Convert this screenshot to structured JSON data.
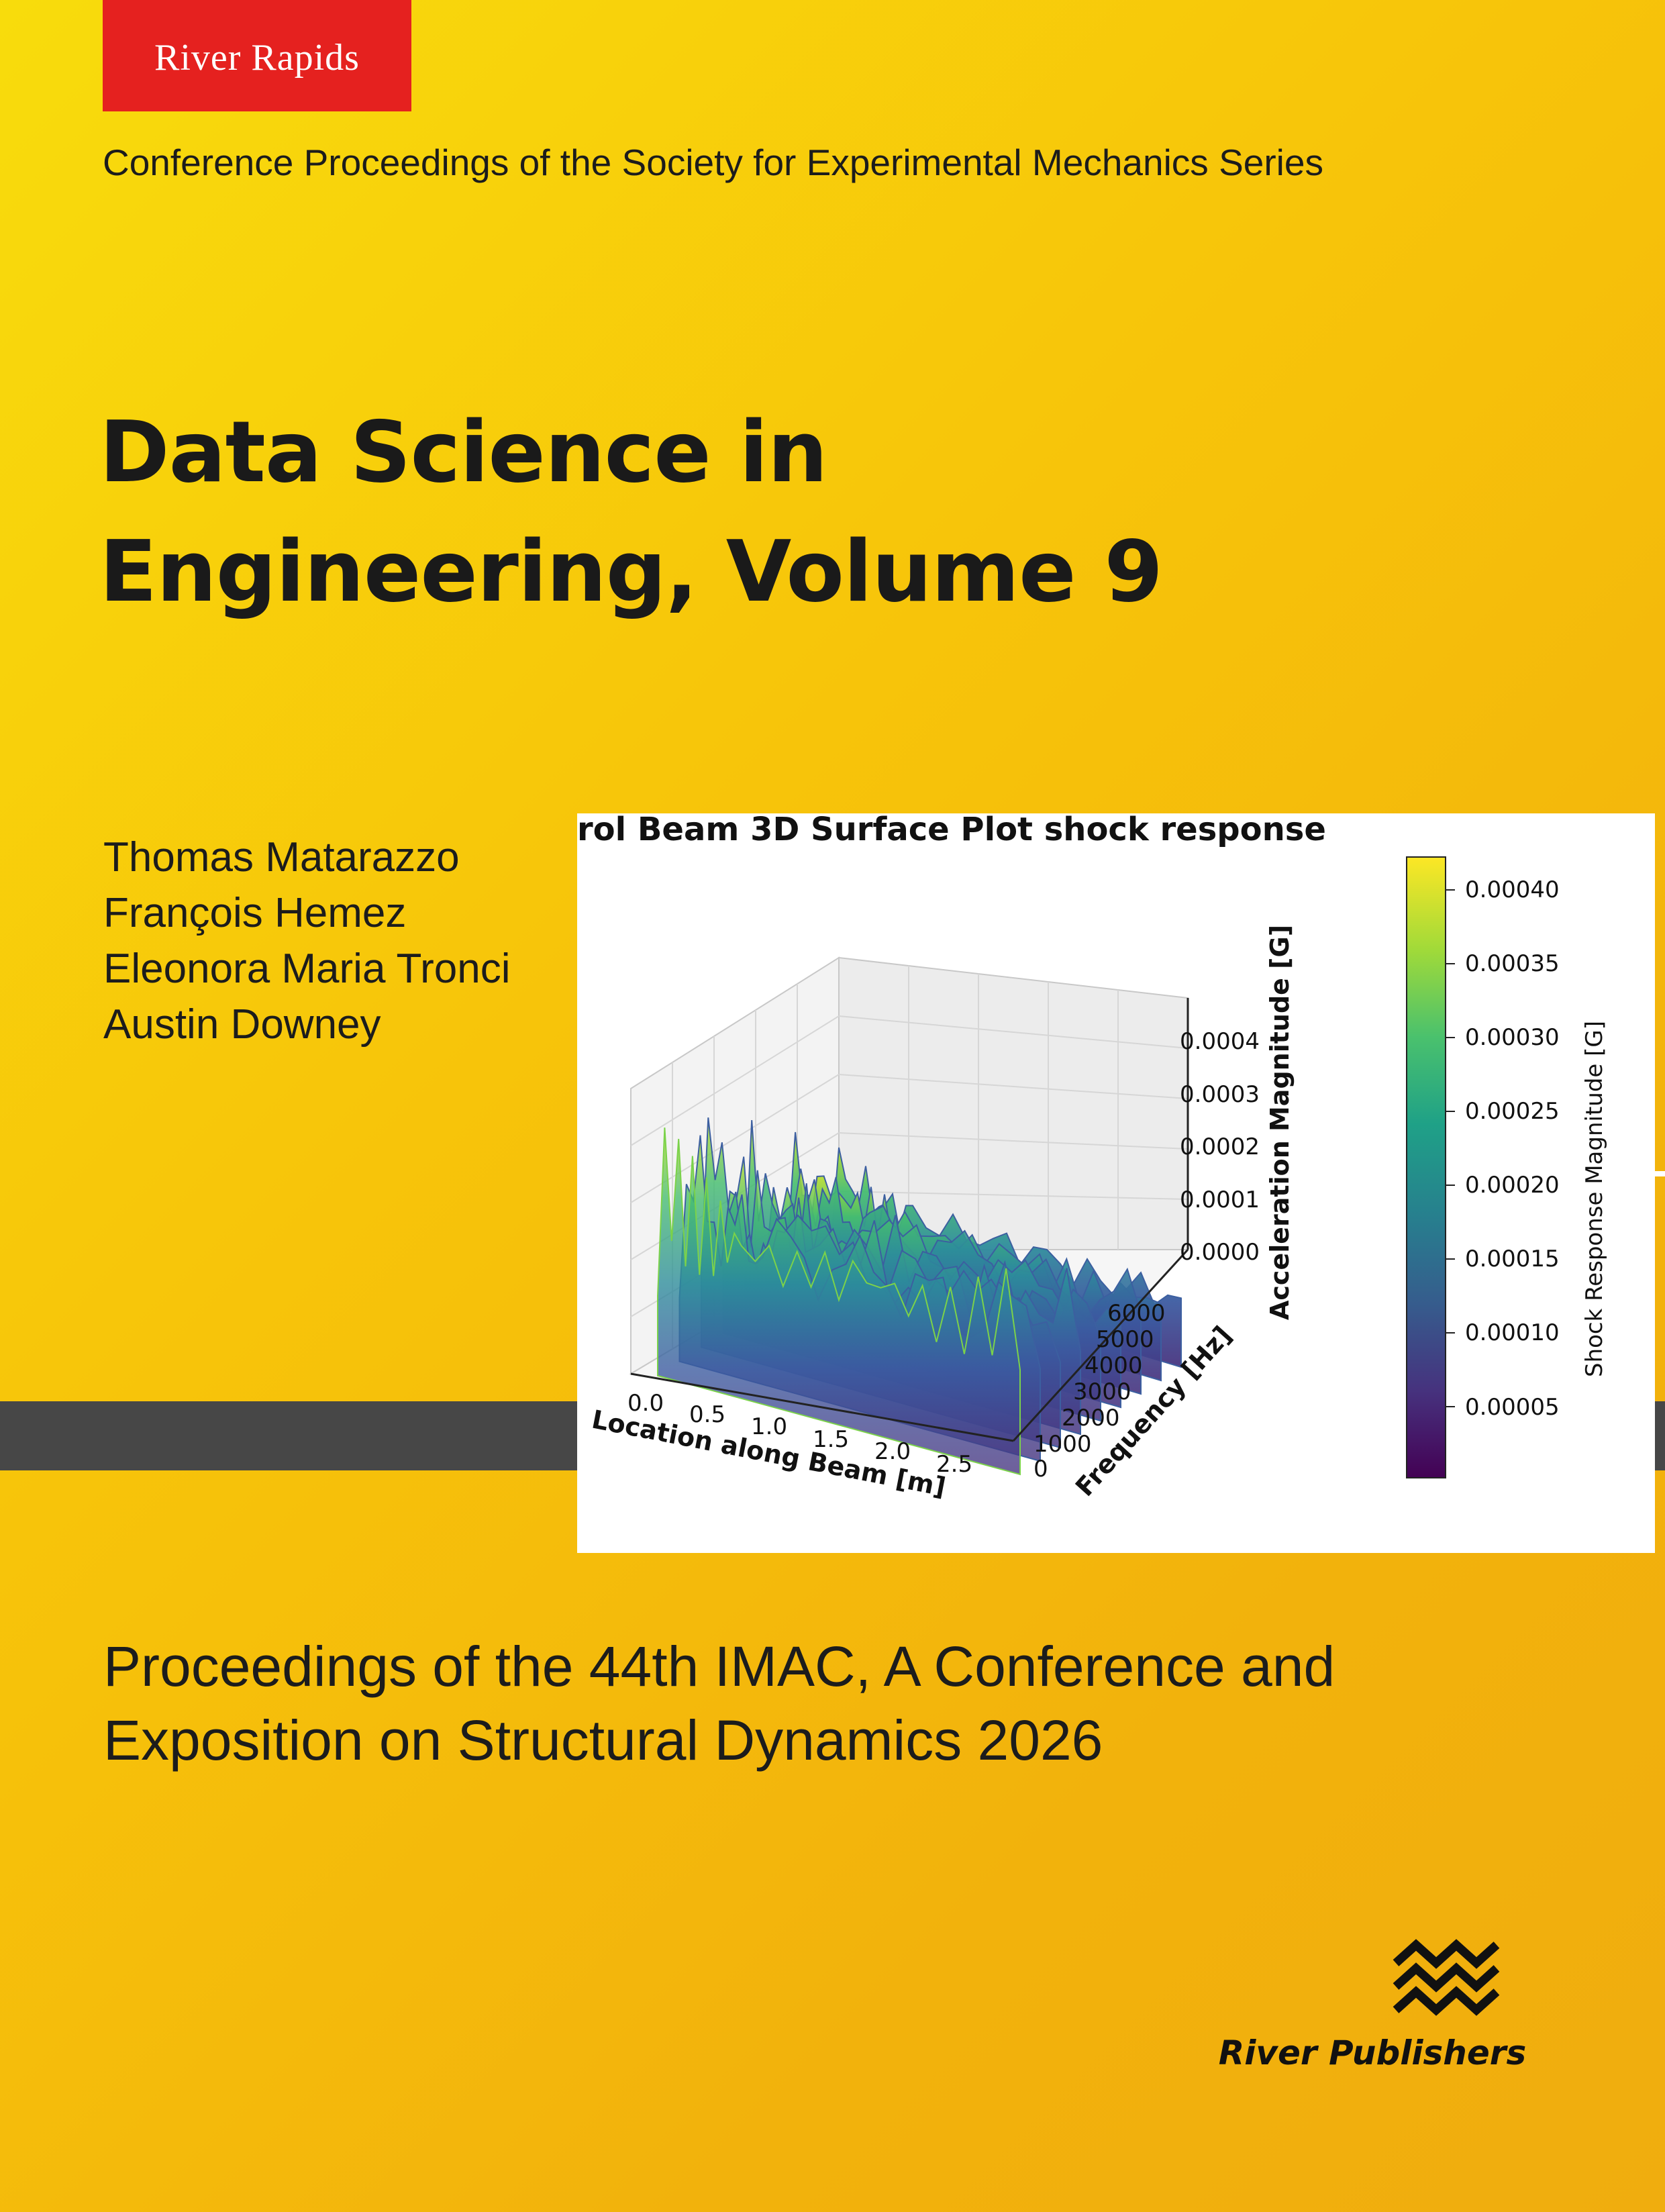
{
  "badge": {
    "label": "River Rapids",
    "color": "#e5211f"
  },
  "series": "Conference Proceedings of the Society for Experimental Mechanics Series",
  "title": {
    "line1": "Data Science in",
    "line2": "Engineering, Volume 9"
  },
  "authors": [
    "Thomas Matarazzo",
    "François Hemez",
    "Eleonora Maria Tronci",
    "Austin Downey"
  ],
  "proceedings": {
    "line1": "Proceedings of the 44th IMAC, A Conference and",
    "line2": "Exposition on Structural Dynamics 2026"
  },
  "publisher": {
    "name": "River Publishers",
    "logo_icon": "river-waves-icon"
  },
  "figure": {
    "title": "rol Beam 3D Surface Plot shock response",
    "x_label": "Location along Beam [m]",
    "y_label": "Frequency [Hz]",
    "z_label": "Acceleration Magnitude [G]",
    "colorbar_label": "Shock Response Magnitude [G]",
    "x_ticks": [
      "0.0",
      "0.5",
      "1.0",
      "1.5",
      "2.0",
      "2.5"
    ],
    "y_ticks": [
      "0",
      "1000",
      "2000",
      "3000",
      "4000",
      "5000",
      "6000"
    ],
    "z_ticks": [
      "0.0000",
      "0.0001",
      "0.0002",
      "0.0003",
      "0.0004"
    ],
    "colorbar_ticks": [
      "0.00005",
      "0.00010",
      "0.00015",
      "0.00020",
      "0.00025",
      "0.00030",
      "0.00035",
      "0.00040"
    ]
  },
  "chart_data": {
    "type": "surface",
    "title": "rol Beam 3D Surface Plot shock response",
    "xlabel": "Location along Beam [m]",
    "ylabel": "Frequency [Hz]",
    "zlabel": "Acceleration Magnitude [G]",
    "xlim": [
      0,
      2.6
    ],
    "ylim": [
      0,
      6000
    ],
    "zlim": [
      0,
      0.00045
    ],
    "colormap": "viridis",
    "colorbar_range": [
      0,
      0.00042
    ],
    "ridge_x": [
      0.0,
      0.05,
      0.1,
      0.15,
      0.2,
      0.25,
      0.3,
      0.35,
      0.4,
      0.45,
      0.5,
      0.55,
      0.6,
      0.7,
      0.8,
      0.9,
      1.0,
      1.1,
      1.2,
      1.3,
      1.4,
      1.5,
      1.6,
      1.7,
      1.8,
      1.9,
      2.0,
      2.1,
      2.2,
      2.3,
      2.4,
      2.5,
      2.6
    ],
    "ridge_z": [
      0.00015,
      0.00042,
      0.0003,
      0.00038,
      0.00027,
      0.00035,
      0.00026,
      0.00033,
      0.00025,
      0.00032,
      0.00026,
      0.0003,
      0.00027,
      0.00029,
      0.00026,
      0.00028,
      0.00025,
      0.00031,
      0.00026,
      0.00029,
      0.00027,
      0.00032,
      0.00026,
      0.0003,
      0.00025,
      0.00028,
      0.00024,
      0.00027,
      0.00025,
      0.00029,
      0.00027,
      0.00032,
      0.00024
    ]
  }
}
